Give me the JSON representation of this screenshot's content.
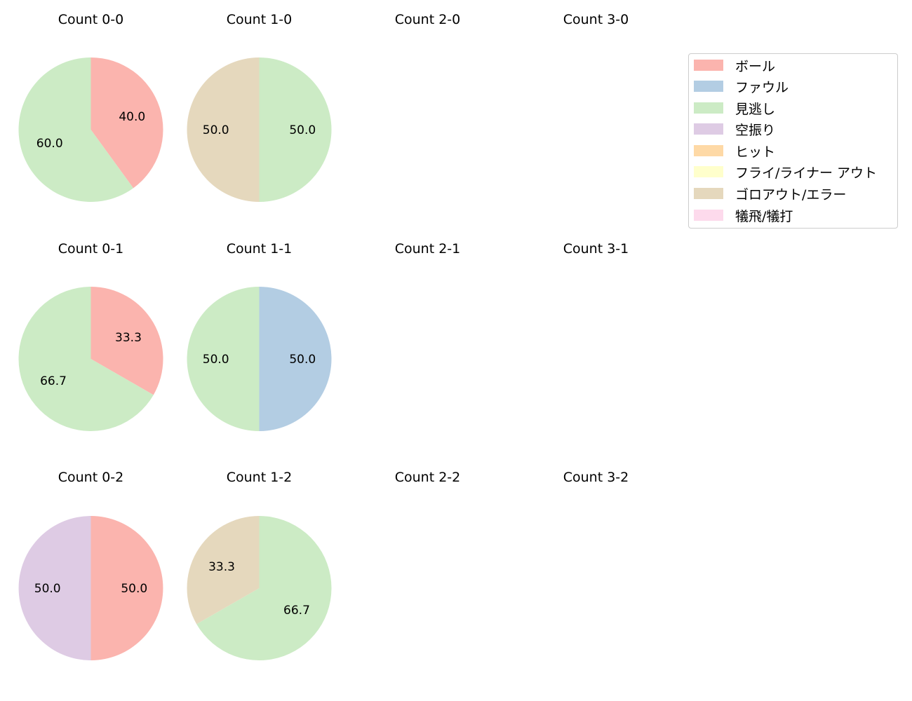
{
  "chart_data": {
    "type": "pie",
    "layout": {
      "rows": 3,
      "cols": 4,
      "legend_position": "upper right"
    },
    "categories": [
      "ボール",
      "ファウル",
      "見逃し",
      "空振り",
      "ヒット",
      "フライ/ライナー アウト",
      "ゴロアウト/エラー",
      "犠飛/犠打"
    ],
    "colors": [
      "#fbb4ae",
      "#b3cde3",
      "#ccebc5",
      "#decbe4",
      "#fed9a6",
      "#ffffcc",
      "#e5d8bd",
      "#fddaec"
    ],
    "subplots": [
      {
        "title": "Count 0-0",
        "slices": [
          {
            "category": "ボール",
            "value": 40.0,
            "label": "40.0"
          },
          {
            "category": "見逃し",
            "value": 60.0,
            "label": "60.0"
          }
        ]
      },
      {
        "title": "Count 1-0",
        "slices": [
          {
            "category": "見逃し",
            "value": 50.0,
            "label": "50.0"
          },
          {
            "category": "ゴロアウト/エラー",
            "value": 50.0,
            "label": "50.0"
          }
        ]
      },
      {
        "title": "Count 2-0",
        "slices": []
      },
      {
        "title": "Count 3-0",
        "slices": []
      },
      {
        "title": "Count 0-1",
        "slices": [
          {
            "category": "ボール",
            "value": 33.3,
            "label": "33.3"
          },
          {
            "category": "見逃し",
            "value": 66.7,
            "label": "66.7"
          }
        ]
      },
      {
        "title": "Count 1-1",
        "slices": [
          {
            "category": "ファウル",
            "value": 50.0,
            "label": "50.0"
          },
          {
            "category": "見逃し",
            "value": 50.0,
            "label": "50.0"
          }
        ]
      },
      {
        "title": "Count 2-1",
        "slices": []
      },
      {
        "title": "Count 3-1",
        "slices": []
      },
      {
        "title": "Count 0-2",
        "slices": [
          {
            "category": "ボール",
            "value": 50.0,
            "label": "50.0"
          },
          {
            "category": "空振り",
            "value": 50.0,
            "label": "50.0"
          }
        ]
      },
      {
        "title": "Count 1-2",
        "slices": [
          {
            "category": "見逃し",
            "value": 66.7,
            "label": "66.7"
          },
          {
            "category": "ゴロアウト/エラー",
            "value": 33.3,
            "label": "33.3"
          }
        ]
      },
      {
        "title": "Count 2-2",
        "slices": []
      },
      {
        "title": "Count 3-2",
        "slices": []
      }
    ],
    "start_angle": 90,
    "direction": "clockwise",
    "autopct": "%.1f"
  },
  "legend": {
    "items": [
      {
        "label": "ボール",
        "color": "#fbb4ae"
      },
      {
        "label": "ファウル",
        "color": "#b3cde3"
      },
      {
        "label": "見逃し",
        "color": "#ccebc5"
      },
      {
        "label": "空振り",
        "color": "#decbe4"
      },
      {
        "label": "ヒット",
        "color": "#fed9a6"
      },
      {
        "label": "フライ/ライナー アウト",
        "color": "#ffffcc"
      },
      {
        "label": "ゴロアウト/エラー",
        "color": "#e5d8bd"
      },
      {
        "label": "犠飛/犠打",
        "color": "#fddaec"
      }
    ]
  }
}
